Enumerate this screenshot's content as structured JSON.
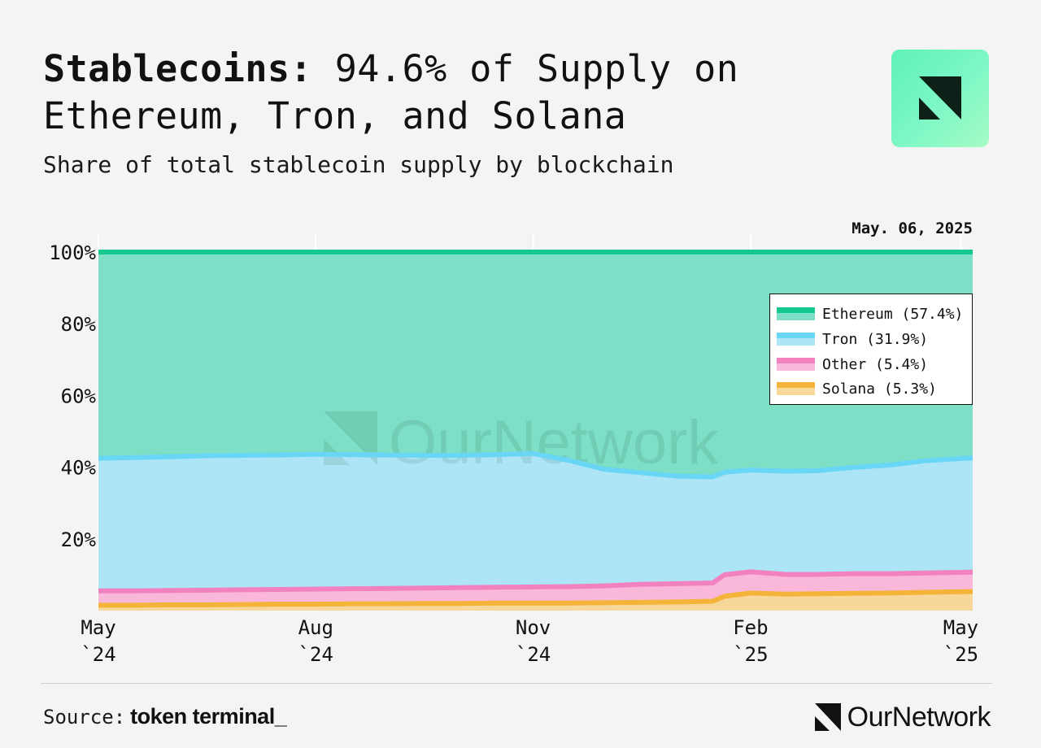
{
  "header": {
    "title_bold": "Stablecoins:",
    "title_rest": " 94.6% of Supply on Ethereum, Tron, and Solana",
    "subtitle": "Share of total stablecoin supply by blockchain"
  },
  "date_label": "May. 06, 2025",
  "watermark": "OurNetwork",
  "footer": {
    "source_label": "Source:",
    "source_brand": "token terminal_",
    "logo_text": "OurNetwork"
  },
  "colors": {
    "ethereum_line": "#14c98f",
    "ethereum_fill": "#7ddfc6",
    "tron_line": "#6ad6f6",
    "tron_fill": "#ade5f6",
    "other_line": "#f281c0",
    "other_fill": "#f9b8d9",
    "solana_line": "#f4b43a",
    "solana_fill": "#f8d79a"
  },
  "chart_data": {
    "type": "area",
    "stacked": true,
    "percent": true,
    "x": [
      "2024-05-01",
      "2024-05-16",
      "2024-06-01",
      "2024-06-16",
      "2024-07-01",
      "2024-07-16",
      "2024-08-01",
      "2024-08-16",
      "2024-09-01",
      "2024-09-16",
      "2024-10-01",
      "2024-10-16",
      "2024-11-01",
      "2024-11-16",
      "2024-12-01",
      "2024-12-16",
      "2025-01-01",
      "2025-01-16",
      "2025-01-21",
      "2025-02-01",
      "2025-02-16",
      "2025-03-01",
      "2025-03-16",
      "2025-04-01",
      "2025-04-16",
      "2025-05-06"
    ],
    "series": [
      {
        "name": "Solana",
        "values": [
          1.5,
          1.5,
          1.6,
          1.6,
          1.7,
          1.8,
          1.8,
          1.9,
          1.9,
          2.0,
          2.0,
          2.1,
          2.1,
          2.1,
          2.2,
          2.3,
          2.4,
          2.6,
          4.0,
          4.9,
          4.6,
          4.7,
          4.8,
          4.9,
          5.1,
          5.3
        ]
      },
      {
        "name": "Other",
        "values": [
          4.0,
          4.0,
          4.0,
          4.1,
          4.1,
          4.1,
          4.2,
          4.2,
          4.3,
          4.3,
          4.4,
          4.4,
          4.5,
          4.6,
          4.7,
          5.0,
          5.1,
          5.1,
          6.0,
          5.9,
          5.5,
          5.4,
          5.5,
          5.4,
          5.4,
          5.4
        ]
      },
      {
        "name": "Tron",
        "values": [
          37.0,
          37.2,
          37.3,
          37.5,
          37.5,
          37.5,
          37.6,
          37.4,
          37.2,
          37.0,
          36.9,
          37.0,
          37.2,
          35.2,
          32.5,
          31.2,
          30.0,
          29.6,
          28.6,
          28.4,
          28.8,
          28.9,
          29.6,
          30.3,
          31.3,
          31.9
        ]
      },
      {
        "name": "Ethereum",
        "values": [
          57.5,
          57.3,
          57.1,
          56.8,
          56.7,
          56.6,
          56.4,
          56.5,
          56.6,
          56.7,
          56.7,
          56.5,
          56.2,
          58.1,
          60.6,
          61.5,
          62.5,
          62.7,
          61.4,
          60.8,
          61.1,
          61.0,
          60.1,
          59.4,
          58.2,
          57.4
        ]
      }
    ],
    "legend": [
      {
        "name": "Ethereum",
        "label": "Ethereum (57.4%)"
      },
      {
        "name": "Tron",
        "label": "Tron (31.9%)"
      },
      {
        "name": "Other",
        "label": "Other (5.4%)"
      },
      {
        "name": "Solana",
        "label": "Solana (5.3%)"
      }
    ],
    "legend_position": "top-right",
    "ylim": [
      0,
      100
    ],
    "y_ticks": [
      "20%",
      "40%",
      "60%",
      "80%",
      "100%"
    ],
    "y_tick_values": [
      20,
      40,
      60,
      80,
      100
    ],
    "x_ticks": [
      {
        "date": "2024-05-01",
        "line1": "May",
        "line2": "`24"
      },
      {
        "date": "2024-08-01",
        "line1": "Aug",
        "line2": "`24"
      },
      {
        "date": "2024-11-01",
        "line1": "Nov",
        "line2": "`24"
      },
      {
        "date": "2025-02-01",
        "line1": "Feb",
        "line2": "`25"
      },
      {
        "date": "2025-05-01",
        "line1": "May",
        "line2": "`25"
      }
    ],
    "xlabel": "",
    "ylabel": "",
    "grid": true
  }
}
